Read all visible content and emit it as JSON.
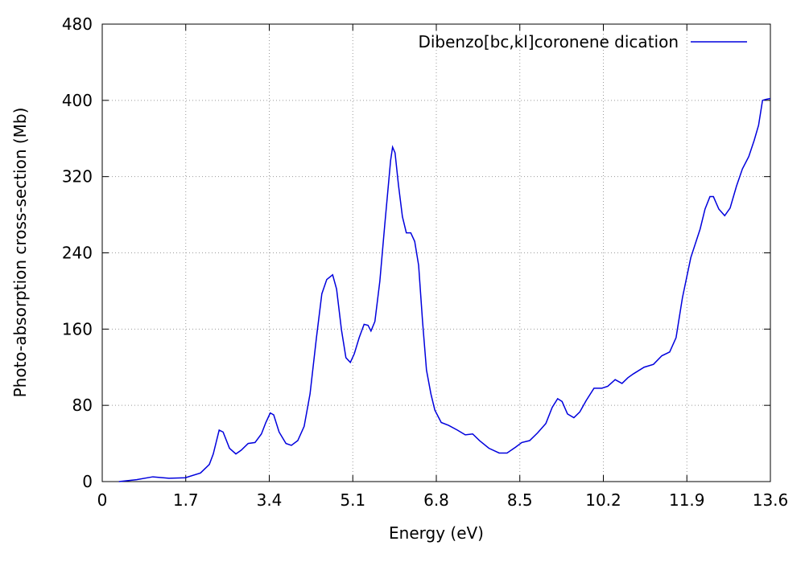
{
  "chart_data": {
    "type": "line",
    "xlabel": "Energy (eV)",
    "ylabel": "Photo-absorption cross-section (Mb)",
    "xlim": [
      0,
      13.6
    ],
    "xticks": [
      0,
      1.7,
      3.4,
      5.1,
      6.8,
      8.5,
      10.2,
      11.9,
      13.6
    ],
    "ylim": [
      0,
      480
    ],
    "yticks": [
      0,
      80,
      160,
      240,
      320,
      400,
      480
    ],
    "grid": true,
    "legend": "top-right",
    "series": [
      {
        "name": "Dibenzo[bc,kl]coronene dication",
        "color": "#0000dd",
        "x": [
          0.34,
          0.7,
          1.03,
          1.36,
          1.69,
          2.0,
          2.18,
          2.26,
          2.38,
          2.46,
          2.59,
          2.72,
          2.83,
          2.97,
          3.11,
          3.24,
          3.33,
          3.42,
          3.49,
          3.6,
          3.74,
          3.85,
          3.98,
          4.11,
          4.23,
          4.36,
          4.47,
          4.57,
          4.69,
          4.77,
          4.87,
          4.96,
          5.05,
          5.13,
          5.23,
          5.33,
          5.41,
          5.47,
          5.55,
          5.65,
          5.75,
          5.87,
          5.91,
          5.96,
          6.03,
          6.11,
          6.19,
          6.28,
          6.36,
          6.44,
          6.52,
          6.6,
          6.69,
          6.77,
          6.9,
          7.05,
          7.23,
          7.39,
          7.54,
          7.68,
          7.87,
          8.08,
          8.24,
          8.41,
          8.54,
          8.7,
          8.86,
          9.03,
          9.16,
          9.27,
          9.36,
          9.47,
          9.6,
          9.72,
          9.85,
          10.01,
          10.17,
          10.29,
          10.44,
          10.58,
          10.7,
          10.81,
          11.03,
          11.22,
          11.39,
          11.55,
          11.68,
          11.81,
          11.98,
          12.17,
          12.27,
          12.37,
          12.44,
          12.55,
          12.67,
          12.78,
          12.91,
          13.03,
          13.16,
          13.27,
          13.36,
          13.44,
          13.51,
          13.6
        ],
        "values": [
          0,
          2,
          5,
          3.5,
          4,
          9,
          18,
          29,
          54,
          52,
          35,
          29,
          33,
          40,
          41,
          50,
          62,
          72,
          70,
          52,
          40,
          38,
          43,
          58,
          92,
          151,
          197,
          212,
          217,
          202,
          159,
          130,
          125,
          134,
          151,
          165,
          164,
          158,
          168,
          210,
          269,
          337,
          351,
          345,
          311,
          278,
          261,
          261,
          252,
          227,
          168,
          117,
          92,
          75,
          62,
          59,
          54,
          49,
          50,
          43,
          35,
          30,
          30,
          36,
          41,
          43,
          51,
          61,
          78,
          87,
          84,
          71,
          67,
          73,
          85,
          98,
          98,
          100,
          107,
          103,
          109,
          113,
          120,
          123,
          132,
          136,
          151,
          193,
          235,
          265,
          286,
          299,
          299,
          286,
          279,
          287,
          310,
          328,
          341,
          358,
          374,
          400,
          401,
          402
        ]
      }
    ]
  }
}
